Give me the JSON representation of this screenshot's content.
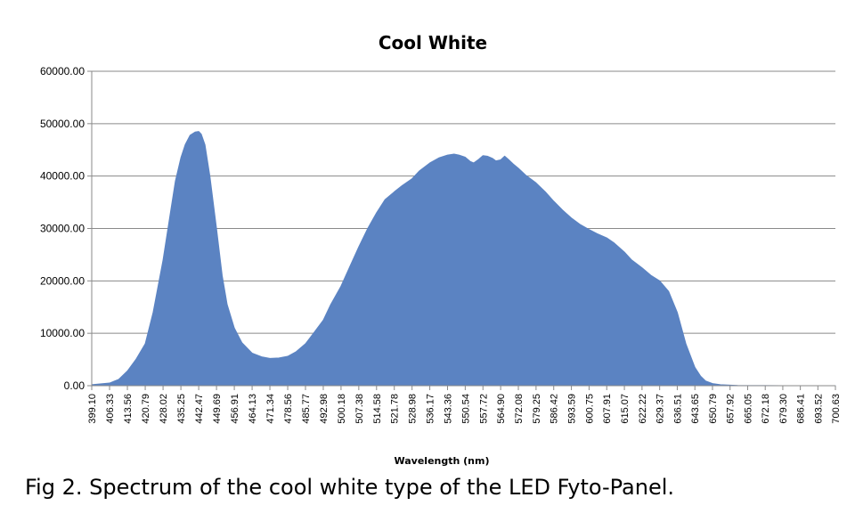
{
  "caption": "Fig 2. Spectrum of the cool white type of the LED Fyto-Panel.",
  "chart_data": {
    "type": "area",
    "title": "Cool White",
    "xlabel": "Wavelength (nm)",
    "ylabel": "",
    "ylim": [
      0,
      60000
    ],
    "yticks": [
      "0.00",
      "10000.00",
      "20000.00",
      "30000.00",
      "40000.00",
      "50000.00",
      "60000.00"
    ],
    "xlim": [
      399.1,
      700.63
    ],
    "xticks": [
      "399.10",
      "406.33",
      "413.56",
      "420.79",
      "428.02",
      "435.25",
      "442.47",
      "449.69",
      "456.91",
      "464.13",
      "471.34",
      "478.56",
      "485.77",
      "492.98",
      "500.18",
      "507.38",
      "514.58",
      "521.78",
      "528.98",
      "536.17",
      "543.36",
      "550.54",
      "557.72",
      "564.90",
      "572.08",
      "579.25",
      "586.42",
      "593.59",
      "600.75",
      "607.91",
      "615.07",
      "622.22",
      "629.37",
      "636.51",
      "643.65",
      "650.79",
      "657.92",
      "665.05",
      "672.18",
      "679.30",
      "686.41",
      "693.52",
      "700.63"
    ],
    "grid": true,
    "legend": "none",
    "fill_color": "#5b83c2",
    "series": [
      {
        "x": [
          399.1,
          406.33,
          410,
          413.56,
          417,
          420.79,
          424,
          428.02,
          431,
          433,
          435.25,
          437,
          439,
          441,
          442.47,
          443.5,
          445,
          447,
          449.69,
          452,
          454,
          456.91,
          460,
          464.13,
          468,
          471.34,
          475,
          478.56,
          482,
          485.77,
          489,
          492.98,
          496,
          500.18,
          504,
          507.38,
          511,
          514.58,
          518,
          521.78,
          525,
          528.98,
          532,
          536.17,
          540,
          543.36,
          546,
          548,
          550.54,
          552.5,
          554,
          556,
          557.72,
          559.5,
          561.5,
          563,
          564.9,
          566.5,
          568,
          570,
          572.08,
          575,
          579.25,
          583,
          586.42,
          590,
          593.59,
          597,
          600.75,
          604,
          607.91,
          611,
          615.07,
          618,
          622.22,
          626,
          629.37,
          633,
          636.51,
          640,
          643.65,
          646,
          648,
          650.79,
          654,
          657.92,
          661,
          665.05,
          672.18,
          679.3,
          686.41,
          693.52,
          700.63
        ],
        "values": [
          200,
          500,
          1200,
          2800,
          5000,
          8000,
          14000,
          24000,
          33000,
          39000,
          43500,
          46000,
          47800,
          48400,
          48500,
          48000,
          46000,
          40000,
          30000,
          21000,
          15500,
          11000,
          8200,
          6200,
          5500,
          5200,
          5300,
          5600,
          6500,
          8000,
          10000,
          12500,
          15500,
          19000,
          23000,
          26500,
          30000,
          33000,
          35500,
          37000,
          38200,
          39500,
          41000,
          42500,
          43500,
          44000,
          44200,
          44000,
          43600,
          42800,
          42500,
          43200,
          43900,
          43800,
          43400,
          42900,
          43100,
          43800,
          43200,
          42300,
          41500,
          40200,
          38700,
          37000,
          35200,
          33500,
          32000,
          30800,
          29800,
          29000,
          28200,
          27200,
          25500,
          24000,
          22500,
          21000,
          20000,
          18000,
          14000,
          8000,
          3500,
          1800,
          900,
          400,
          200,
          100,
          50,
          30,
          20,
          10,
          10,
          10,
          0
        ]
      }
    ]
  }
}
